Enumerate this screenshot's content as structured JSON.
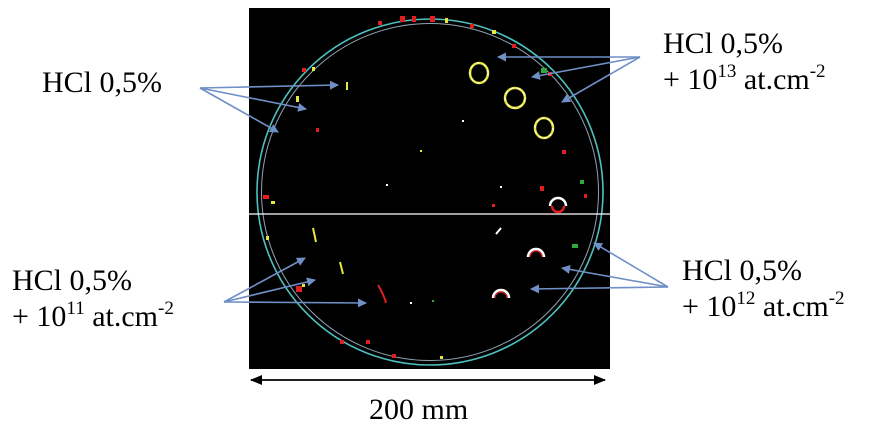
{
  "labels": {
    "top_left": {
      "line1": "HCl 0,5%"
    },
    "top_right": {
      "line1": "HCl 0,5%",
      "prefix": "+ 10",
      "exponent": "13",
      "unit": " at.cm",
      "unit_exponent": "-2"
    },
    "bottom_left": {
      "line1": "HCl 0,5%",
      "prefix": "+ 10",
      "exponent": "11",
      "unit": " at.cm",
      "unit_exponent": "-2"
    },
    "bottom_right": {
      "line1": "HCl 0,5%",
      "prefix": "+ 10",
      "exponent": "12",
      "unit": " at.cm",
      "unit_exponent": "-2"
    }
  },
  "scale": {
    "text": "200 mm"
  },
  "colors": {
    "image_background": "#000000",
    "wafer_outline": "#4ec0c0",
    "arrow": "#6f8fc6",
    "defect_red": "#e02020",
    "defect_yellow": "#e6e63c",
    "defect_green": "#2eaa3a",
    "defect_white": "#ffffff"
  }
}
